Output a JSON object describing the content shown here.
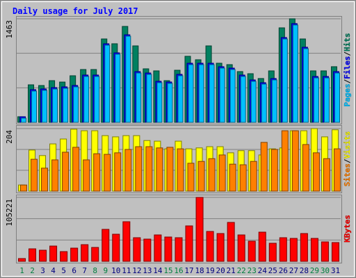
{
  "chart_data": [
    {
      "type": "bar",
      "title": "Daily usage for July 2017",
      "categories": [
        "1",
        "2",
        "3",
        "4",
        "5",
        "6",
        "7",
        "8",
        "9",
        "10",
        "11",
        "12",
        "13",
        "14",
        "15",
        "16",
        "17",
        "18",
        "19",
        "20",
        "21",
        "22",
        "23",
        "24",
        "25",
        "26",
        "27",
        "28",
        "29",
        "30",
        "31"
      ],
      "category_colors": [
        "#008040",
        "#008040",
        "#00007f",
        "#00007f",
        "#00007f",
        "#00007f",
        "#00007f",
        "#008040",
        "#008040",
        "#00007f",
        "#00007f",
        "#00007f",
        "#00007f",
        "#00007f",
        "#008040",
        "#008040",
        "#00007f",
        "#00007f",
        "#00007f",
        "#00007f",
        "#00007f",
        "#008040",
        "#008040",
        "#00007f",
        "#00007f",
        "#00007f",
        "#00007f",
        "#00007f",
        "#008040",
        "#008040",
        "#00007f"
      ],
      "legend_separator": "/",
      "ylim": [
        0,
        1463
      ],
      "yticks": [
        1463
      ],
      "series": [
        {
          "name": "Hits",
          "color": "#008060",
          "values": [
            79,
            530,
            520,
            589,
            569,
            658,
            746,
            746,
            1178,
            1110,
            1355,
            1080,
            756,
            727,
            589,
            736,
            933,
            884,
            1080,
            835,
            815,
            717,
            687,
            619,
            727,
            1335,
            1463,
            1178,
            727,
            727,
            786
          ]
        },
        {
          "name": "Files",
          "color": "#0000ff",
          "values": [
            79,
            462,
            472,
            491,
            501,
            521,
            668,
            668,
            1110,
            982,
            1237,
            717,
            697,
            580,
            570,
            678,
            835,
            835,
            835,
            786,
            766,
            668,
            599,
            560,
            619,
            1198,
            1395,
            1061,
            648,
            648,
            717
          ]
        },
        {
          "name": "Pages",
          "color": "#00c0ff",
          "values": [
            59,
            442,
            452,
            471,
            481,
            501,
            648,
            648,
            1090,
            962,
            1217,
            697,
            677,
            560,
            550,
            658,
            815,
            815,
            815,
            766,
            746,
            648,
            579,
            540,
            599,
            1178,
            1375,
            1041,
            628,
            628,
            697
          ]
        }
      ]
    },
    {
      "type": "bar",
      "legend_separator": "/",
      "ylim": [
        0,
        204
      ],
      "yticks": [
        204
      ],
      "series": [
        {
          "name": "Visits",
          "color": "#ffff00",
          "values": [
            20,
            134,
            116,
            154,
            170,
            202,
            197,
            197,
            181,
            177,
            181,
            181,
            165,
            163,
            138,
            163,
            138,
            141,
            145,
            145,
            125,
            132,
            132,
            118,
            138,
            141,
            197,
            197,
            204,
            177,
            200
          ]
        },
        {
          "name": "Sites",
          "color": "#ff8000",
          "values": [
            20,
            104,
            75,
            102,
            127,
            143,
            102,
            122,
            120,
            125,
            136,
            145,
            145,
            141,
            143,
            138,
            91,
            97,
            106,
            118,
            88,
            86,
            97,
            159,
            136,
            197,
            197,
            152,
            125,
            106,
            138
          ]
        }
      ]
    },
    {
      "type": "bar",
      "ylim": [
        0,
        105221
      ],
      "yticks": [
        105221
      ],
      "series": [
        {
          "name": "KBytes",
          "color": "#ff0000",
          "values": [
            4575,
            20586,
            18299,
            25161,
            16012,
            21730,
            27448,
            22874,
            52610,
            44604,
            65192,
            38886,
            36598,
            43461,
            40030,
            38886,
            58330,
            105221,
            49179,
            45748,
            64048,
            43461,
            33167,
            48035,
            29736,
            38886,
            37742,
            45748,
            37742,
            32024,
            30880
          ]
        }
      ]
    }
  ]
}
